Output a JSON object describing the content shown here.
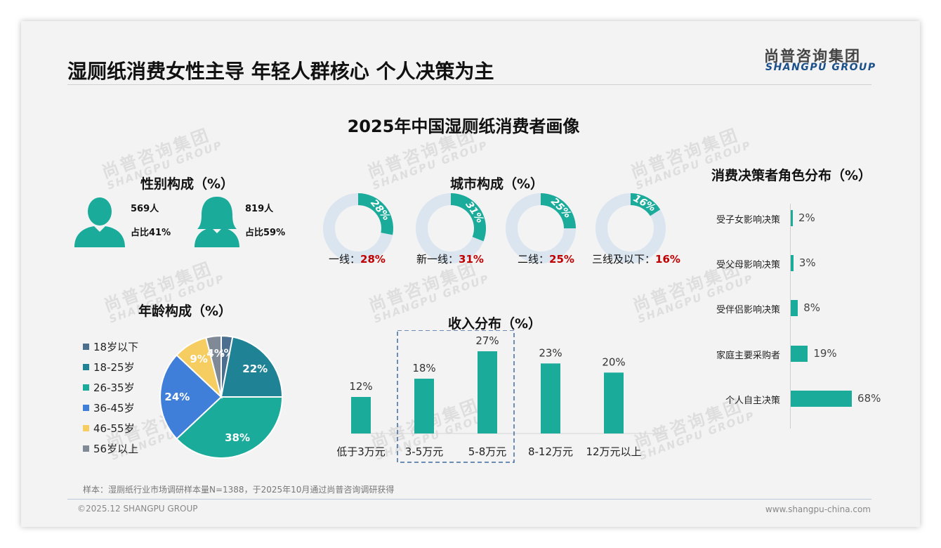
{
  "title": "湿厕纸消费女性主导 年轻人群核心 个人决策为主",
  "logo": {
    "cn": "尚普咨询集团",
    "en": "SHANGPU GROUP"
  },
  "watermark": {
    "cn": "尚普咨询集团",
    "en": "SHANGPU GROUP"
  },
  "subtitle": "2025年中国湿厕纸消费者画像",
  "sections": {
    "gender": "性别构成（%）",
    "city": "城市构成（%）",
    "role": "消费决策者角色分布（%）",
    "age": "年龄构成（%）",
    "income": "收入分布（%）"
  },
  "gender": {
    "male": {
      "count": "569人",
      "share": "占比41%"
    },
    "female": {
      "count": "819人",
      "share": "占比59%"
    }
  },
  "colors": {
    "teal": "#1aab9b",
    "donut_track": "#dbe5ef",
    "red": "#c00000",
    "dashed_box": "#3f6aa0"
  },
  "chart_data": [
    {
      "type": "pie",
      "name": "city",
      "categories": [
        "一线",
        "新一线",
        "二线",
        "三线及以下"
      ],
      "values": [
        28,
        31,
        25,
        16
      ],
      "slice_labels": [
        "28%",
        "31%",
        "25%",
        "16%"
      ],
      "labels": [
        "一线：",
        "新一线：",
        "二线：",
        "三线及以下："
      ],
      "value_labels": [
        "28%",
        "31%",
        "25%",
        "16%"
      ]
    },
    {
      "type": "pie",
      "name": "age",
      "categories": [
        "18岁以下",
        "18-25岁",
        "26-35岁",
        "36-45岁",
        "46-55岁",
        "56岁以上"
      ],
      "values": [
        3,
        22,
        38,
        24,
        9,
        4
      ],
      "slice_labels": [
        "3%",
        "22%",
        "38%",
        "24%",
        "9%",
        "4%"
      ],
      "colors": [
        "#4a6f8f",
        "#1f8395",
        "#1aab9b",
        "#3f7fd9",
        "#f5cd61",
        "#7f8a96"
      ],
      "legend": "left"
    },
    {
      "type": "bar",
      "name": "income",
      "categories": [
        "低于3万元",
        "3-5万元",
        "5-8万元",
        "8-12万元",
        "12万元以上"
      ],
      "values": [
        12,
        18,
        27,
        23,
        20
      ],
      "value_labels": [
        "12%",
        "18%",
        "27%",
        "23%",
        "20%"
      ],
      "ylim": [
        0,
        30
      ],
      "highlight": [
        "3-5万元",
        "5-8万元"
      ]
    },
    {
      "type": "bar",
      "orientation": "horizontal",
      "name": "role",
      "categories": [
        "受子女影响决策",
        "受父母影响决策",
        "受伴侣影响决策",
        "家庭主要采购者",
        "个人自主决策"
      ],
      "values": [
        2,
        3,
        8,
        19,
        68
      ],
      "value_labels": [
        "2%",
        "3%",
        "8%",
        "19%",
        "68%"
      ]
    }
  ],
  "footer": {
    "sample": "样本：湿厕纸行业市场调研样本量N=1388，于2025年10月通过尚普咨询调研获得",
    "copyright": "©2025.12 SHANGPU GROUP",
    "website": "www.shangpu-china.com"
  }
}
